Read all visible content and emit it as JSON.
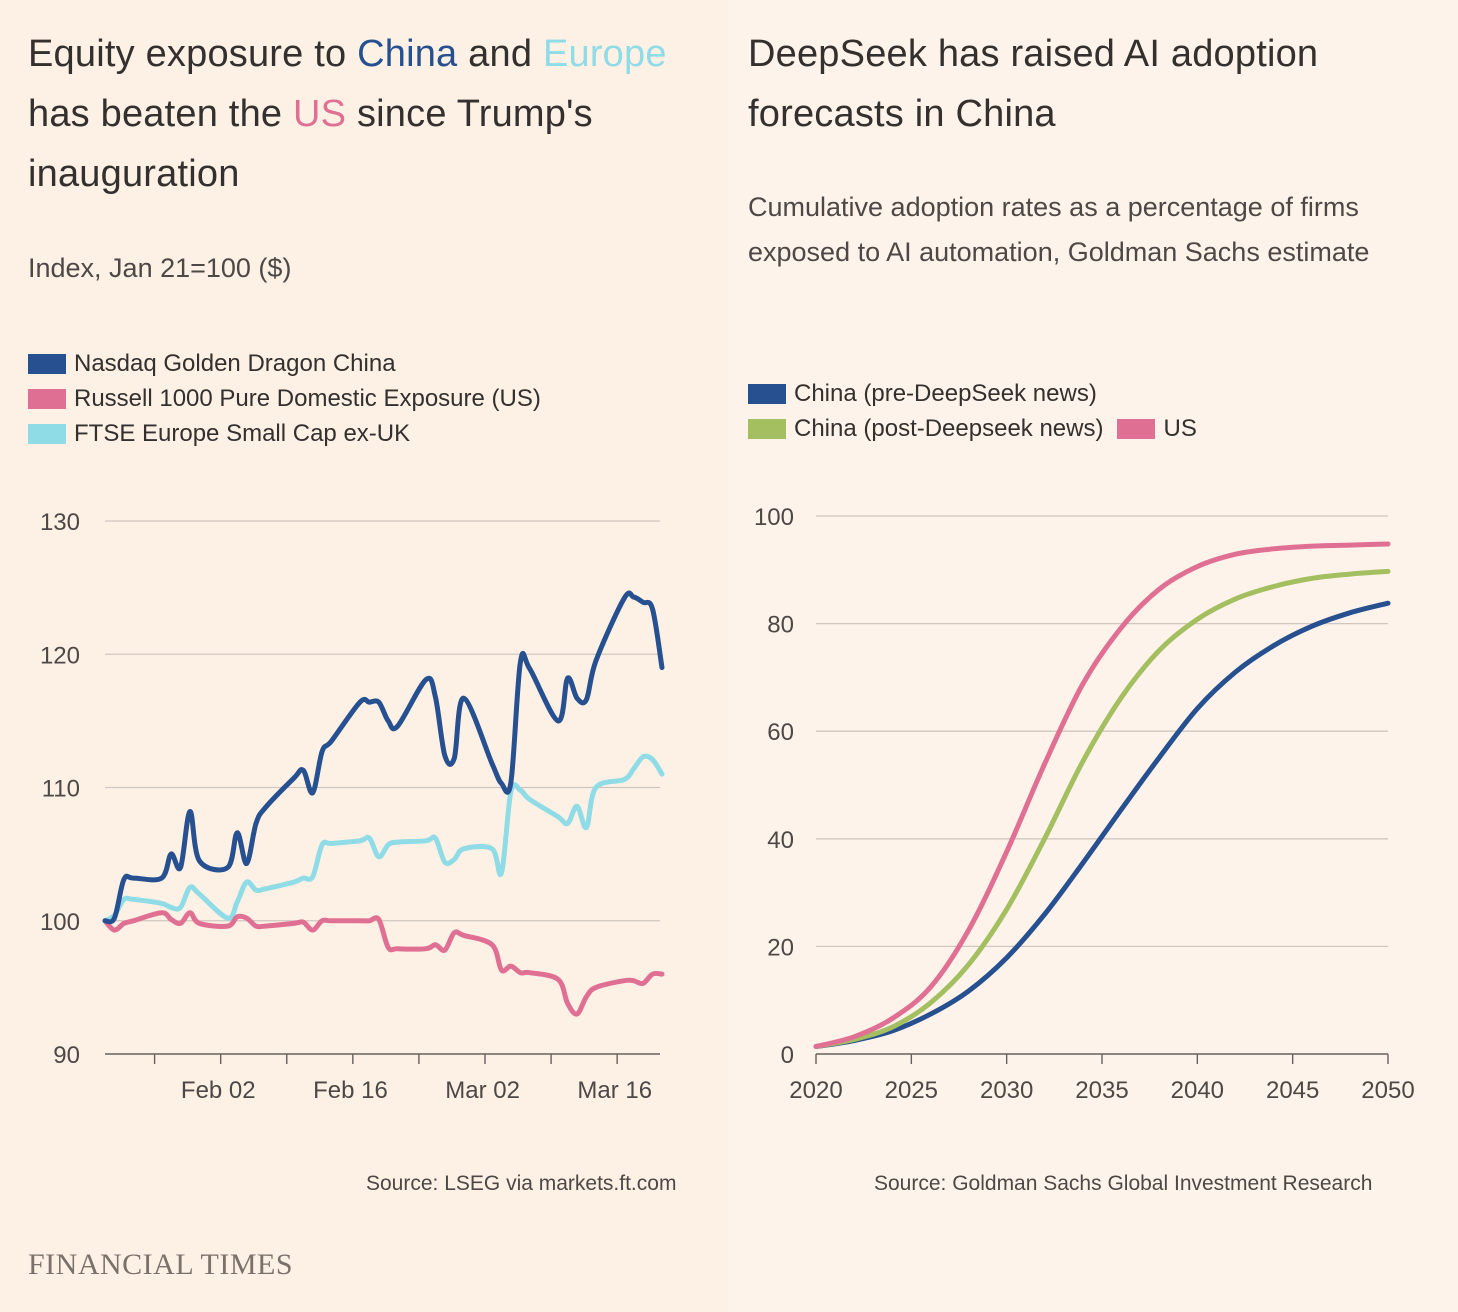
{
  "left": {
    "title_parts": [
      "Equity exposure to ",
      "China",
      " and ",
      "Europe",
      " has beaten the ",
      "US",
      " since Trump's inauguration"
    ],
    "subtitle": "Index, Jan 21=100 ($)",
    "legend": [
      {
        "label": "Nasdaq Golden Dragon China",
        "color": "#26508f"
      },
      {
        "label": "Russell 1000 Pure Domestic Exposure (US)",
        "color": "#e07093"
      },
      {
        "label": "FTSE Europe Small Cap ex-UK",
        "color": "#8fdbe6"
      }
    ],
    "source": "Source: LSEG via markets.ft.com"
  },
  "right": {
    "title": "DeepSeek has raised AI adoption forecasts in China",
    "subtitle": "Cumulative adoption rates as a percentage of firms exposed to AI automation, Goldman Sachs estimate",
    "legend": [
      {
        "label": "China (pre-DeepSeek news)",
        "color": "#26508f"
      },
      {
        "label": "China (post-Deepseek news)",
        "color": "#a3bf60"
      },
      {
        "label": "US",
        "color": "#e07093"
      }
    ],
    "source": "Source: Goldman Sachs Global Investment Research"
  },
  "brand": "FINANCIAL TIMES",
  "colors": {
    "china": "#26508f",
    "europe": "#8fdbe6",
    "us": "#e07093",
    "post": "#a3bf60"
  },
  "chart_data": [
    {
      "type": "line",
      "x_type": "date",
      "x_ticks": [
        "Feb 02",
        "Feb 16",
        "Mar 02",
        "Mar 16"
      ],
      "x_tick_dates": [
        "2025-02-02",
        "2025-02-16",
        "2025-03-02",
        "2025-03-16"
      ],
      "ylim": [
        90,
        130
      ],
      "y_ticks": [
        90,
        100,
        110,
        120,
        130
      ],
      "grid": true,
      "legend_position": "top",
      "series": [
        {
          "name": "Nasdaq Golden Dragon China",
          "color": "#26508f",
          "x": [
            "2025-01-21",
            "2025-01-22",
            "2025-01-23",
            "2025-01-24",
            "2025-01-27",
            "2025-01-28",
            "2025-01-29",
            "2025-01-30",
            "2025-01-31",
            "2025-02-03",
            "2025-02-04",
            "2025-02-05",
            "2025-02-06",
            "2025-02-07",
            "2025-02-10",
            "2025-02-11",
            "2025-02-12",
            "2025-02-13",
            "2025-02-14",
            "2025-02-17",
            "2025-02-18",
            "2025-02-19",
            "2025-02-20",
            "2025-02-21",
            "2025-02-24",
            "2025-02-25",
            "2025-02-26",
            "2025-02-27",
            "2025-02-28",
            "2025-03-03",
            "2025-03-04",
            "2025-03-05",
            "2025-03-06",
            "2025-03-07",
            "2025-03-10",
            "2025-03-11",
            "2025-03-12",
            "2025-03-13",
            "2025-03-14",
            "2025-03-17",
            "2025-03-18",
            "2025-03-19",
            "2025-03-20",
            "2025-03-21"
          ],
          "y": [
            100.0,
            100.2,
            103.1,
            103.2,
            103.2,
            105.0,
            104.0,
            108.2,
            104.5,
            104.0,
            106.6,
            104.3,
            107.3,
            108.5,
            110.7,
            111.3,
            109.6,
            112.7,
            113.5,
            116.4,
            116.4,
            116.4,
            115.0,
            114.6,
            118.1,
            116.8,
            112.4,
            112.2,
            116.7,
            111.8,
            110.3,
            110.4,
            119.4,
            118.9,
            115.0,
            118.2,
            116.7,
            116.6,
            119.5,
            124.2,
            124.3,
            123.9,
            123.4,
            119.0
          ]
        },
        {
          "name": "Russell 1000 Pure Domestic Exposure (US)",
          "color": "#e07093",
          "x": [
            "2025-01-21",
            "2025-01-22",
            "2025-01-23",
            "2025-01-24",
            "2025-01-27",
            "2025-01-28",
            "2025-01-29",
            "2025-01-30",
            "2025-01-31",
            "2025-02-03",
            "2025-02-04",
            "2025-02-05",
            "2025-02-06",
            "2025-02-07",
            "2025-02-10",
            "2025-02-11",
            "2025-02-12",
            "2025-02-13",
            "2025-02-14",
            "2025-02-17",
            "2025-02-18",
            "2025-02-19",
            "2025-02-20",
            "2025-02-21",
            "2025-02-24",
            "2025-02-25",
            "2025-02-26",
            "2025-02-27",
            "2025-02-28",
            "2025-03-03",
            "2025-03-04",
            "2025-03-05",
            "2025-03-06",
            "2025-03-07",
            "2025-03-10",
            "2025-03-11",
            "2025-03-12",
            "2025-03-13",
            "2025-03-14",
            "2025-03-17",
            "2025-03-18",
            "2025-03-19",
            "2025-03-20",
            "2025-03-21"
          ],
          "y": [
            100.0,
            99.3,
            99.8,
            100.0,
            100.6,
            100.1,
            99.8,
            100.6,
            99.8,
            99.6,
            100.3,
            100.2,
            99.6,
            99.6,
            99.8,
            99.9,
            99.3,
            100.0,
            100.0,
            100.0,
            100.0,
            100.1,
            98.0,
            97.9,
            97.9,
            98.2,
            97.8,
            99.1,
            98.9,
            98.2,
            96.3,
            96.6,
            96.1,
            96.1,
            95.6,
            93.8,
            93.0,
            94.3,
            95.0,
            95.5,
            95.5,
            95.3,
            96.0,
            96.0
          ]
        },
        {
          "name": "FTSE Europe Small Cap ex-UK",
          "color": "#8fdbe6",
          "x": [
            "2025-01-21",
            "2025-01-22",
            "2025-01-23",
            "2025-01-24",
            "2025-01-27",
            "2025-01-28",
            "2025-01-29",
            "2025-01-30",
            "2025-01-31",
            "2025-02-03",
            "2025-02-04",
            "2025-02-05",
            "2025-02-06",
            "2025-02-07",
            "2025-02-10",
            "2025-02-11",
            "2025-02-12",
            "2025-02-13",
            "2025-02-14",
            "2025-02-17",
            "2025-02-18",
            "2025-02-19",
            "2025-02-20",
            "2025-02-21",
            "2025-02-24",
            "2025-02-25",
            "2025-02-26",
            "2025-02-27",
            "2025-02-28",
            "2025-03-03",
            "2025-03-04",
            "2025-03-05",
            "2025-03-06",
            "2025-03-07",
            "2025-03-10",
            "2025-03-11",
            "2025-03-12",
            "2025-03-13",
            "2025-03-14",
            "2025-03-17",
            "2025-03-18",
            "2025-03-19",
            "2025-03-20",
            "2025-03-21"
          ],
          "y": [
            100.0,
            100.4,
            101.6,
            101.6,
            101.3,
            101.0,
            101.0,
            102.5,
            102.0,
            100.2,
            101.4,
            102.9,
            102.3,
            102.4,
            102.9,
            103.2,
            103.3,
            105.7,
            105.8,
            106.0,
            106.2,
            104.8,
            105.7,
            105.9,
            106.0,
            106.2,
            104.4,
            104.6,
            105.4,
            105.4,
            103.6,
            109.7,
            109.8,
            109.1,
            107.8,
            107.3,
            108.6,
            107.0,
            110.0,
            110.6,
            111.4,
            112.3,
            112.1,
            111.0
          ]
        }
      ]
    },
    {
      "type": "line",
      "xlim": [
        2020,
        2050
      ],
      "x_ticks": [
        2020,
        2025,
        2030,
        2035,
        2040,
        2045,
        2050
      ],
      "ylim": [
        0,
        100
      ],
      "y_ticks": [
        0,
        20,
        40,
        60,
        80,
        100
      ],
      "grid": true,
      "legend_position": "top",
      "series": [
        {
          "name": "China (pre-DeepSeek news)",
          "color": "#26508f",
          "x": [
            2020,
            2022,
            2024,
            2026,
            2028,
            2030,
            2032,
            2034,
            2036,
            2038,
            2040,
            2042,
            2044,
            2046,
            2048,
            2050
          ],
          "y": [
            1.4,
            2.5,
            4.3,
            7.4,
            11.7,
            17.9,
            26.0,
            35.5,
            45.4,
            55.1,
            64.2,
            71.0,
            75.9,
            79.5,
            82.0,
            83.8
          ]
        },
        {
          "name": "China (post-Deepseek news)",
          "color": "#a3bf60",
          "x": [
            2020,
            2022,
            2024,
            2026,
            2028,
            2030,
            2032,
            2034,
            2036,
            2038,
            2040,
            2042,
            2044,
            2046,
            2048,
            2050
          ],
          "y": [
            1.4,
            2.7,
            5.0,
            9.5,
            16.6,
            26.9,
            40.1,
            54.4,
            66.2,
            75.0,
            80.8,
            84.6,
            86.9,
            88.4,
            89.2,
            89.7
          ]
        },
        {
          "name": "US",
          "color": "#e07093",
          "x": [
            2020,
            2022,
            2024,
            2026,
            2028,
            2030,
            2032,
            2034,
            2036,
            2038,
            2040,
            2042,
            2044,
            2046,
            2048,
            2050
          ],
          "y": [
            1.4,
            3.2,
            6.6,
            12.4,
            23.0,
            37.6,
            54.0,
            68.8,
            79.2,
            86.4,
            90.6,
            92.9,
            93.9,
            94.4,
            94.6,
            94.8
          ]
        }
      ]
    }
  ]
}
